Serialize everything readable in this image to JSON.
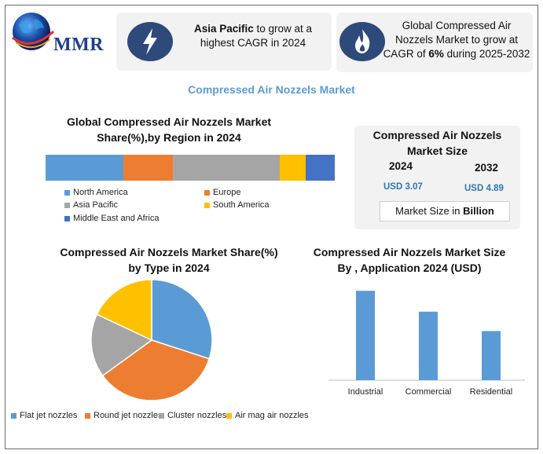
{
  "logo": {
    "text": "MMR"
  },
  "highlights": [
    {
      "icon": "lightning-icon",
      "bold": "Asia Pacific",
      "text": " to grow at a highest CAGR in 2024"
    },
    {
      "icon": "flame-icon",
      "text_before": "Global Compressed Air Nozzels Market to grow at CAGR of ",
      "bold": "6%",
      "text_after": " during 2025-2032"
    }
  ],
  "main_title": "Compressed Air Nozzels Market",
  "market_size": {
    "title_line1": "Compressed Air Nozzels",
    "title_line2": "Market Size",
    "year_a": "2024",
    "year_b": "2032",
    "value_a": "USD 3.07",
    "value_b": "USD 4.89",
    "unit_prefix": "Market Size in ",
    "unit_bold": "Billion"
  },
  "colors": {
    "blue": "#5b9bd5",
    "orange": "#ed7d31",
    "gray": "#a5a5a5",
    "yellow": "#ffc000",
    "dark_blue": "#4472c4",
    "title_blue": "#5b9bd5",
    "badge": "#2e4a7a"
  },
  "chart_data": [
    {
      "type": "bar",
      "stacked": true,
      "orientation": "horizontal",
      "title_line1": "Global Compressed Air Nozzels Market",
      "title_line2": "Share(%),by Region in 2024",
      "series": [
        {
          "name": "North America",
          "values": [
            27
          ],
          "color": "#5b9bd5"
        },
        {
          "name": "Europe",
          "values": [
            17
          ],
          "color": "#ed7d31"
        },
        {
          "name": "Asia Pacific",
          "values": [
            37
          ],
          "color": "#a5a5a5"
        },
        {
          "name": "South America",
          "values": [
            9
          ],
          "color": "#ffc000"
        },
        {
          "name": "Middle East and Africa",
          "values": [
            10
          ],
          "color": "#4472c4"
        }
      ],
      "legend": "bottom"
    },
    {
      "type": "pie",
      "title_line1": "Compressed Air Nozzels Market Share(%)",
      "title_line2": "by Type in 2024",
      "slices": [
        {
          "label": "Flat jet nozzles",
          "value": 30,
          "color": "#5b9bd5"
        },
        {
          "label": "Round jet nozzles",
          "value": 35,
          "color": "#ed7d31"
        },
        {
          "label": "Cluster nozzles",
          "value": 17,
          "color": "#a5a5a5"
        },
        {
          "label": "Air mag air nozzles",
          "value": 18,
          "color": "#ffc000"
        }
      ],
      "legend": "bottom"
    },
    {
      "type": "bar",
      "title_line1": "Compressed Air Nozzels Market Size",
      "title_line2": "By , Application 2024  (USD)",
      "categories": [
        "Industrial",
        "Commercial",
        "Residential"
      ],
      "values": [
        1.2,
        0.92,
        0.66
      ],
      "ylim": [
        0,
        1.35
      ],
      "color": "#5b9bd5",
      "grid": false
    }
  ]
}
